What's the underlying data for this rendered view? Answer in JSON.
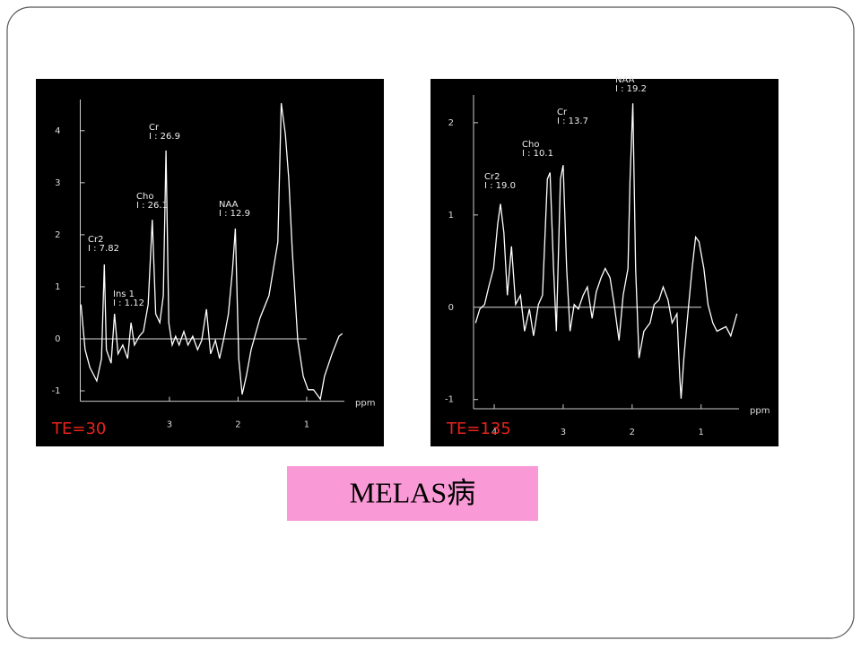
{
  "chart_data": [
    {
      "type": "line",
      "label": "TE=30",
      "x_label": "ppm",
      "color": "#ffffff",
      "xlim": [
        4.3,
        0.45
      ],
      "ylim": [
        -1.2,
        4.6
      ],
      "xticks": [
        3,
        2,
        1
      ],
      "yticks": [
        4,
        3,
        2,
        1,
        0,
        -1
      ],
      "annotations": [
        {
          "name": "Cr2",
          "text": "I : 7.82"
        },
        {
          "name": "Ins 1",
          "text": "I : 1.12"
        },
        {
          "name": "Cho",
          "text": "I : 26.1"
        },
        {
          "name": "Cr",
          "text": "I : 26.9"
        },
        {
          "name": "NAA",
          "text": "I : 12.9"
        }
      ],
      "x": [
        4.29,
        4.23,
        4.16,
        4.06,
        3.99,
        3.95,
        3.92,
        3.85,
        3.8,
        3.75,
        3.68,
        3.61,
        3.56,
        3.51,
        3.44,
        3.38,
        3.31,
        3.25,
        3.2,
        3.14,
        3.09,
        3.05,
        3.01,
        2.96,
        2.91,
        2.86,
        2.79,
        2.73,
        2.66,
        2.59,
        2.53,
        2.46,
        2.4,
        2.33,
        2.27,
        2.2,
        2.14,
        2.08,
        2.04,
        1.99,
        1.94,
        1.88,
        1.81,
        1.68,
        1.55,
        1.42,
        1.37,
        1.31,
        1.26,
        1.21,
        1.13,
        1.05,
        0.98,
        0.9,
        0.8,
        0.74,
        0.63,
        0.53,
        0.48
      ],
      "values": [
        0.66,
        -0.21,
        -0.55,
        -0.81,
        -0.38,
        1.43,
        -0.21,
        -0.47,
        0.48,
        -0.29,
        -0.12,
        -0.38,
        0.31,
        -0.12,
        0.05,
        0.14,
        0.66,
        2.29,
        0.48,
        0.31,
        0.83,
        3.62,
        0.31,
        -0.12,
        0.05,
        -0.12,
        0.14,
        -0.12,
        0.05,
        -0.21,
        -0.03,
        0.57,
        -0.29,
        -0.03,
        -0.38,
        0.05,
        0.48,
        1.34,
        2.12,
        -0.38,
        -1.07,
        -0.72,
        -0.21,
        0.4,
        0.83,
        1.86,
        4.53,
        3.93,
        3.07,
        1.69,
        -0.03,
        -0.72,
        -0.98,
        -0.98,
        -1.16,
        -0.72,
        -0.29,
        0.05,
        0.1
      ]
    },
    {
      "type": "line",
      "label": "TE=135",
      "x_label": "ppm",
      "color": "#ffffff",
      "xlim": [
        4.3,
        0.45
      ],
      "ylim": [
        -1.1,
        2.3
      ],
      "xticks": [
        4,
        3,
        2,
        1
      ],
      "yticks": [
        2,
        1,
        0,
        -1
      ],
      "annotations": [
        {
          "name": "Cr2",
          "text": "I : 19.0"
        },
        {
          "name": "Cho",
          "text": "I : 10.1"
        },
        {
          "name": "Cr",
          "text": "I : 13.7"
        },
        {
          "name": "NAA",
          "text": "I : 19.2"
        }
      ],
      "x": [
        4.27,
        4.21,
        4.14,
        4.08,
        4.01,
        3.95,
        3.91,
        3.86,
        3.81,
        3.75,
        3.69,
        3.62,
        3.56,
        3.49,
        3.43,
        3.36,
        3.3,
        3.23,
        3.19,
        3.14,
        3.1,
        3.04,
        3.0,
        2.95,
        2.9,
        2.84,
        2.78,
        2.71,
        2.65,
        2.58,
        2.52,
        2.45,
        2.39,
        2.32,
        2.26,
        2.19,
        2.13,
        2.06,
        2.03,
        1.99,
        1.95,
        1.9,
        1.83,
        1.74,
        1.68,
        1.61,
        1.55,
        1.48,
        1.42,
        1.35,
        1.31,
        1.29,
        1.25,
        1.18,
        1.13,
        1.08,
        1.03,
        0.96,
        0.9,
        0.83,
        0.77,
        0.64,
        0.57,
        0.48
      ],
      "values": [
        -0.17,
        -0.02,
        0.03,
        0.22,
        0.42,
        0.9,
        1.12,
        0.81,
        0.13,
        0.66,
        0.03,
        0.13,
        -0.26,
        -0.02,
        -0.31,
        0.03,
        0.13,
        1.39,
        1.46,
        0.42,
        -0.26,
        1.39,
        1.54,
        0.42,
        -0.26,
        0.03,
        -0.02,
        0.13,
        0.22,
        -0.12,
        0.17,
        0.32,
        0.42,
        0.32,
        0.03,
        -0.36,
        0.13,
        0.42,
        1.39,
        2.21,
        0.42,
        -0.55,
        -0.26,
        -0.17,
        0.03,
        0.08,
        0.22,
        0.08,
        -0.17,
        -0.07,
        -0.75,
        -0.99,
        -0.55,
        0.03,
        0.42,
        0.76,
        0.71,
        0.42,
        0.03,
        -0.17,
        -0.26,
        -0.21,
        -0.31,
        -0.07
      ]
    }
  ],
  "caption": "MELAS病"
}
